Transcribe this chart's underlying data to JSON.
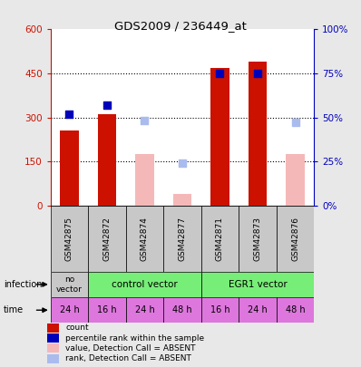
{
  "title": "GDS2009 / 236449_at",
  "samples": [
    "GSM42875",
    "GSM42872",
    "GSM42874",
    "GSM42877",
    "GSM42871",
    "GSM42873",
    "GSM42876"
  ],
  "count_values": [
    255,
    310,
    null,
    null,
    470,
    490,
    null
  ],
  "count_absent_values": [
    null,
    null,
    175,
    40,
    null,
    null,
    175
  ],
  "rank_pct_present": [
    52,
    57,
    null,
    null,
    75,
    75,
    null
  ],
  "rank_pct_absent": [
    null,
    null,
    48,
    24,
    null,
    null,
    47
  ],
  "ylim_left": [
    0,
    600
  ],
  "ylim_right": [
    0,
    100
  ],
  "yticks_left": [
    0,
    150,
    300,
    450,
    600
  ],
  "yticks_right": [
    0,
    25,
    50,
    75,
    100
  ],
  "ytick_labels_left": [
    "0",
    "150",
    "300",
    "450",
    "600"
  ],
  "ytick_labels_right": [
    "0%",
    "25%",
    "50%",
    "75%",
    "100%"
  ],
  "time_labels": [
    "24 h",
    "16 h",
    "24 h",
    "48 h",
    "16 h",
    "24 h",
    "48 h"
  ],
  "time_color": "#dd77dd",
  "count_color": "#cc1100",
  "count_absent_color": "#f5b8b8",
  "rank_color": "#0000bb",
  "rank_absent_color": "#aabbee",
  "left_tick_color": "#cc1100",
  "right_tick_color": "#0000bb",
  "background_color": "#e8e8e8",
  "plot_bg": "#ffffff",
  "sample_bg": "#c8c8c8",
  "novector_color": "#c8c8c8",
  "control_color": "#77ee77",
  "egr1_color": "#77ee77",
  "legend_items": [
    {
      "label": "count",
      "color": "#cc1100"
    },
    {
      "label": "percentile rank within the sample",
      "color": "#0000bb"
    },
    {
      "label": "value, Detection Call = ABSENT",
      "color": "#f5b8b8"
    },
    {
      "label": "rank, Detection Call = ABSENT",
      "color": "#aabbee"
    }
  ]
}
